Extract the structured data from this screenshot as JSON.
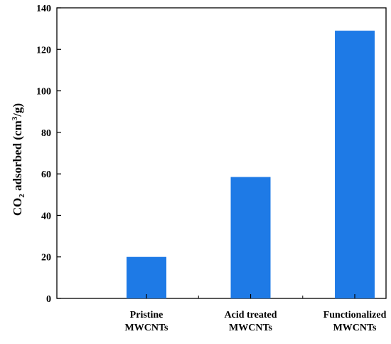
{
  "chart_data": {
    "type": "bar",
    "title": "",
    "xlabel": "",
    "ylabel": {
      "prefix": "CO",
      "sub": "2",
      "middle": " adsorbed (cm",
      "sup": "3",
      "suffix": "/g)"
    },
    "categories": [
      [
        "Pristine",
        "MWCNTs"
      ],
      [
        "Acid treated",
        "MWCNTs"
      ],
      [
        "Functionalized",
        "MWCNTs"
      ]
    ],
    "values": [
      20,
      58.5,
      129
    ],
    "ylim": [
      0,
      140
    ],
    "yticks": [
      0,
      20,
      40,
      60,
      80,
      100,
      120,
      140
    ],
    "grid": false,
    "colors": {
      "bar": "#1e7ae6",
      "axis": "#000000"
    }
  }
}
